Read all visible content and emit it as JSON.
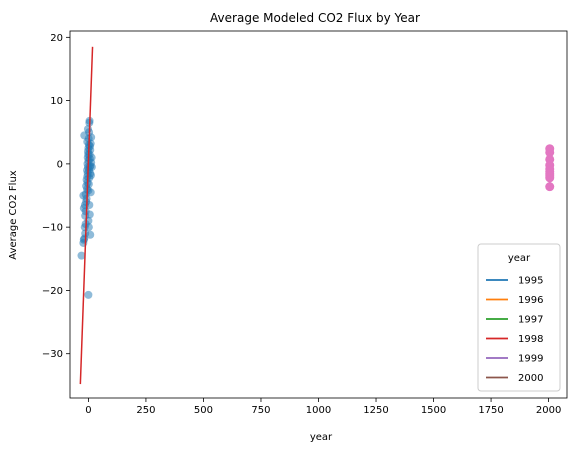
{
  "chart_data": {
    "type": "scatter",
    "title": "Average Modeled CO2 Flux by Year",
    "xlabel": "year",
    "ylabel": "Average CO2 Flux",
    "xlim": [
      -80,
      2080
    ],
    "ylim": [
      -37,
      21
    ],
    "xticks": [
      0,
      250,
      500,
      750,
      1000,
      1250,
      1500,
      1750,
      2000
    ],
    "yticks": [
      -30,
      -20,
      -10,
      0,
      10,
      20
    ],
    "grid": false,
    "legend": {
      "title": "year",
      "placement": "lower-right",
      "entries": [
        {
          "label": "1995",
          "color": "#1f77b4"
        },
        {
          "label": "1996",
          "color": "#ff7f0e"
        },
        {
          "label": "1997",
          "color": "#2ca02c"
        },
        {
          "label": "1998",
          "color": "#d62728"
        },
        {
          "label": "1999",
          "color": "#9467bd"
        },
        {
          "label": "2000",
          "color": "#8c564b"
        }
      ]
    },
    "scatter_series": {
      "color": "#1f77b4",
      "points": [
        [
          -30,
          -14.5
        ],
        [
          -22,
          -12.5
        ],
        [
          -20,
          -12
        ],
        [
          -18,
          -11.8
        ],
        [
          -16,
          -10
        ],
        [
          -14,
          -8.2
        ],
        [
          -12,
          -7.5
        ],
        [
          -20,
          -7
        ],
        [
          -15,
          -6.5
        ],
        [
          -10,
          -6
        ],
        [
          -8,
          -5.5
        ],
        [
          -22,
          -5
        ],
        [
          -12,
          -4.8
        ],
        [
          -6,
          -4
        ],
        [
          -10,
          -3.5
        ],
        [
          -4,
          -3
        ],
        [
          -8,
          -2.5
        ],
        [
          -5,
          -2
        ],
        [
          -3,
          -1.5
        ],
        [
          -6,
          -1
        ],
        [
          -2,
          -0.5
        ],
        [
          -4,
          0
        ],
        [
          0,
          0.5
        ],
        [
          -3,
          1
        ],
        [
          -1,
          1.5
        ],
        [
          -2,
          2
        ],
        [
          0,
          2.5
        ],
        [
          2,
          3
        ],
        [
          -5,
          3.5
        ],
        [
          1,
          4
        ],
        [
          -18,
          4.5
        ],
        [
          3,
          5
        ],
        [
          -2,
          5.5
        ],
        [
          4,
          6.5
        ],
        [
          5,
          6.8
        ],
        [
          6,
          -0.5
        ],
        [
          8,
          -1.5
        ],
        [
          4,
          -2.2
        ],
        [
          2,
          -3.2
        ],
        [
          0,
          -4.2
        ],
        [
          6,
          0.8
        ],
        [
          8,
          2.2
        ],
        [
          10,
          3.2
        ],
        [
          12,
          4.2
        ],
        [
          4,
          -6.5
        ],
        [
          6,
          -8
        ],
        [
          0,
          -9
        ],
        [
          2,
          -10
        ],
        [
          8,
          -11.2
        ],
        [
          5,
          1.5
        ],
        [
          7,
          2.8
        ],
        [
          3,
          -1
        ],
        [
          9,
          -0.3
        ],
        [
          12,
          0.2
        ],
        [
          14,
          1
        ],
        [
          15,
          -0.5
        ],
        [
          11,
          -1.8
        ],
        [
          10,
          -4.5
        ],
        [
          -12,
          -9.5
        ],
        [
          -14,
          -11
        ],
        [
          0,
          -20.7
        ]
      ]
    },
    "line_series": {
      "color": "#d62728",
      "x": [
        -35,
        18
      ],
      "y": [
        -34.8,
        18.5
      ]
    },
    "pink_series": {
      "color": "#e377c2",
      "points": [
        [
          2005,
          2.4
        ],
        [
          2005,
          1.8
        ],
        [
          2005,
          0.7
        ],
        [
          2005,
          -0.2
        ],
        [
          2005,
          -0.8
        ],
        [
          2005,
          -1.2
        ],
        [
          2005,
          -1.6
        ],
        [
          2005,
          -1.9
        ],
        [
          2005,
          -2.2
        ],
        [
          2005,
          -3.6
        ]
      ],
      "interval": [
        -3.6,
        2.4
      ]
    }
  }
}
